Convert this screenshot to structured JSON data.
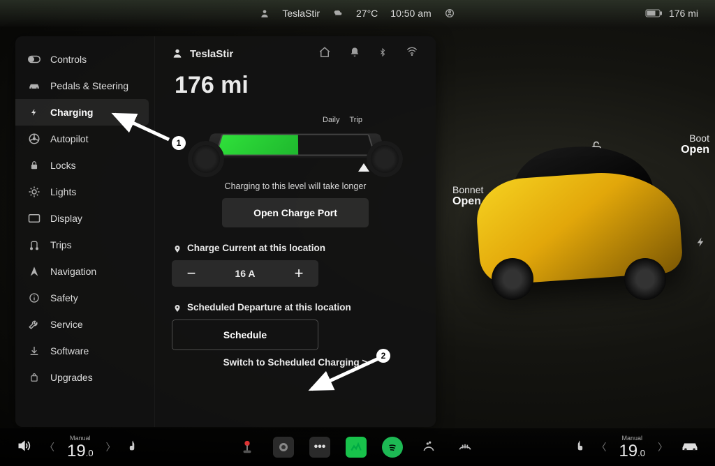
{
  "statusbar": {
    "profile": "TeslaStir",
    "temp": "27°C",
    "time": "10:50 am",
    "range": "176 mi"
  },
  "sidebar": {
    "items": [
      {
        "label": "Controls",
        "icon": "toggle"
      },
      {
        "label": "Pedals & Steering",
        "icon": "car"
      },
      {
        "label": "Charging",
        "icon": "bolt",
        "active": true
      },
      {
        "label": "Autopilot",
        "icon": "wheel"
      },
      {
        "label": "Locks",
        "icon": "lock"
      },
      {
        "label": "Lights",
        "icon": "sun"
      },
      {
        "label": "Display",
        "icon": "display"
      },
      {
        "label": "Trips",
        "icon": "route"
      },
      {
        "label": "Navigation",
        "icon": "nav"
      },
      {
        "label": "Safety",
        "icon": "info"
      },
      {
        "label": "Service",
        "icon": "wrench"
      },
      {
        "label": "Software",
        "icon": "download"
      },
      {
        "label": "Upgrades",
        "icon": "bag"
      }
    ]
  },
  "charging": {
    "profile": "TeslaStir",
    "range": "176 mi",
    "limit_labels": {
      "daily": "Daily",
      "trip": "Trip"
    },
    "battery_fill_pct": 52,
    "caption": "Charging to this level will take longer",
    "open_port_btn": "Open Charge Port",
    "current_label": "Charge Current at this location",
    "current_value": "16 A",
    "departure_label": "Scheduled Departure at this location",
    "schedule_btn": "Schedule",
    "switch_link": "Switch to Scheduled Charging >"
  },
  "vehicle": {
    "bonnet_label": "Bonnet",
    "bonnet_state": "Open",
    "boot_label": "Boot",
    "boot_state": "Open",
    "body_color": "#e8b90f"
  },
  "dock": {
    "left_mode": "Manual",
    "left_temp": "19",
    "left_temp_dec": ".0",
    "right_mode": "Manual",
    "right_temp": "19",
    "right_temp_dec": ".0"
  },
  "annotations": {
    "callout1": "1",
    "callout2": "2"
  },
  "styling": {
    "panel_bg": "rgba(18,18,18,.92)",
    "accent_green": "#2fe03a",
    "text": "#eaeaea"
  }
}
